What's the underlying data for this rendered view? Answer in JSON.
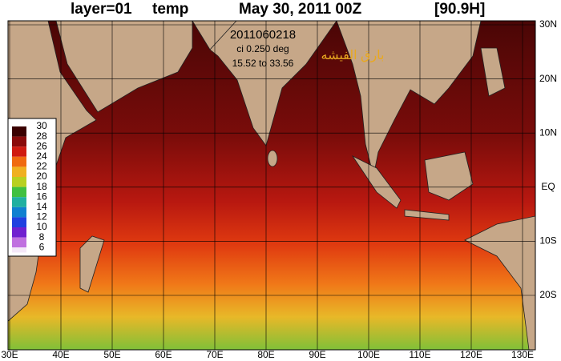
{
  "title": {
    "layer": "layer=01",
    "variable": "temp",
    "date": "May 30, 2011 00Z",
    "run": "[90.9H]"
  },
  "annotations": {
    "stamp": "2011060218",
    "contour_interval": "ci 0.250 deg",
    "range": "15.52 to 33.56",
    "watermark": "بارق الفيشه"
  },
  "colorbar": {
    "labels": [
      30,
      28,
      26,
      24,
      22,
      20,
      18,
      16,
      14,
      12,
      10,
      8,
      6
    ],
    "colors": [
      "#3a0000",
      "#8a0a0a",
      "#d01a10",
      "#f06a10",
      "#f0b020",
      "#b8d020",
      "#40c040",
      "#20b0a0",
      "#1080d0",
      "#2040e0",
      "#7020d0",
      "#c070e0"
    ]
  },
  "map": {
    "lon_labels": [
      "30E",
      "40E",
      "50E",
      "60E",
      "70E",
      "80E",
      "90E",
      "100E",
      "110E",
      "120E",
      "130E"
    ],
    "lat_labels": [
      "30N",
      "20N",
      "10N",
      "EQ",
      "10S",
      "20S"
    ]
  }
}
